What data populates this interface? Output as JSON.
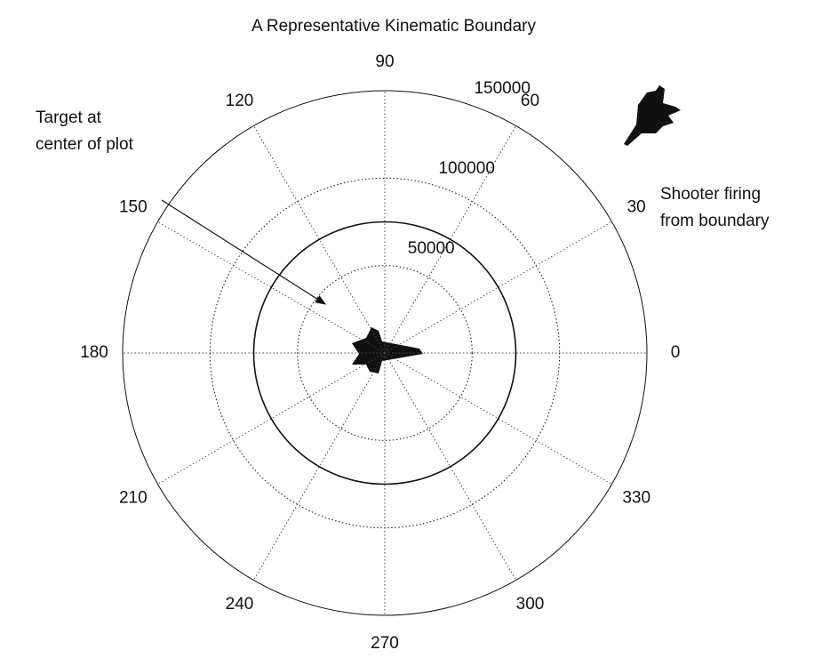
{
  "chart_data": {
    "type": "polar",
    "title": "A Representative Kinematic Boundary",
    "rlim": [
      0,
      150000
    ],
    "rticks": [
      50000,
      100000,
      150000
    ],
    "thetaticks": [
      0,
      30,
      60,
      90,
      120,
      150,
      180,
      210,
      240,
      270,
      300,
      330
    ],
    "boundary": 75000,
    "annotations": [
      {
        "lines": [
          "Target at",
          "center of plot"
        ]
      },
      {
        "lines": [
          "Shooter firing",
          "from boundary"
        ]
      }
    ]
  }
}
